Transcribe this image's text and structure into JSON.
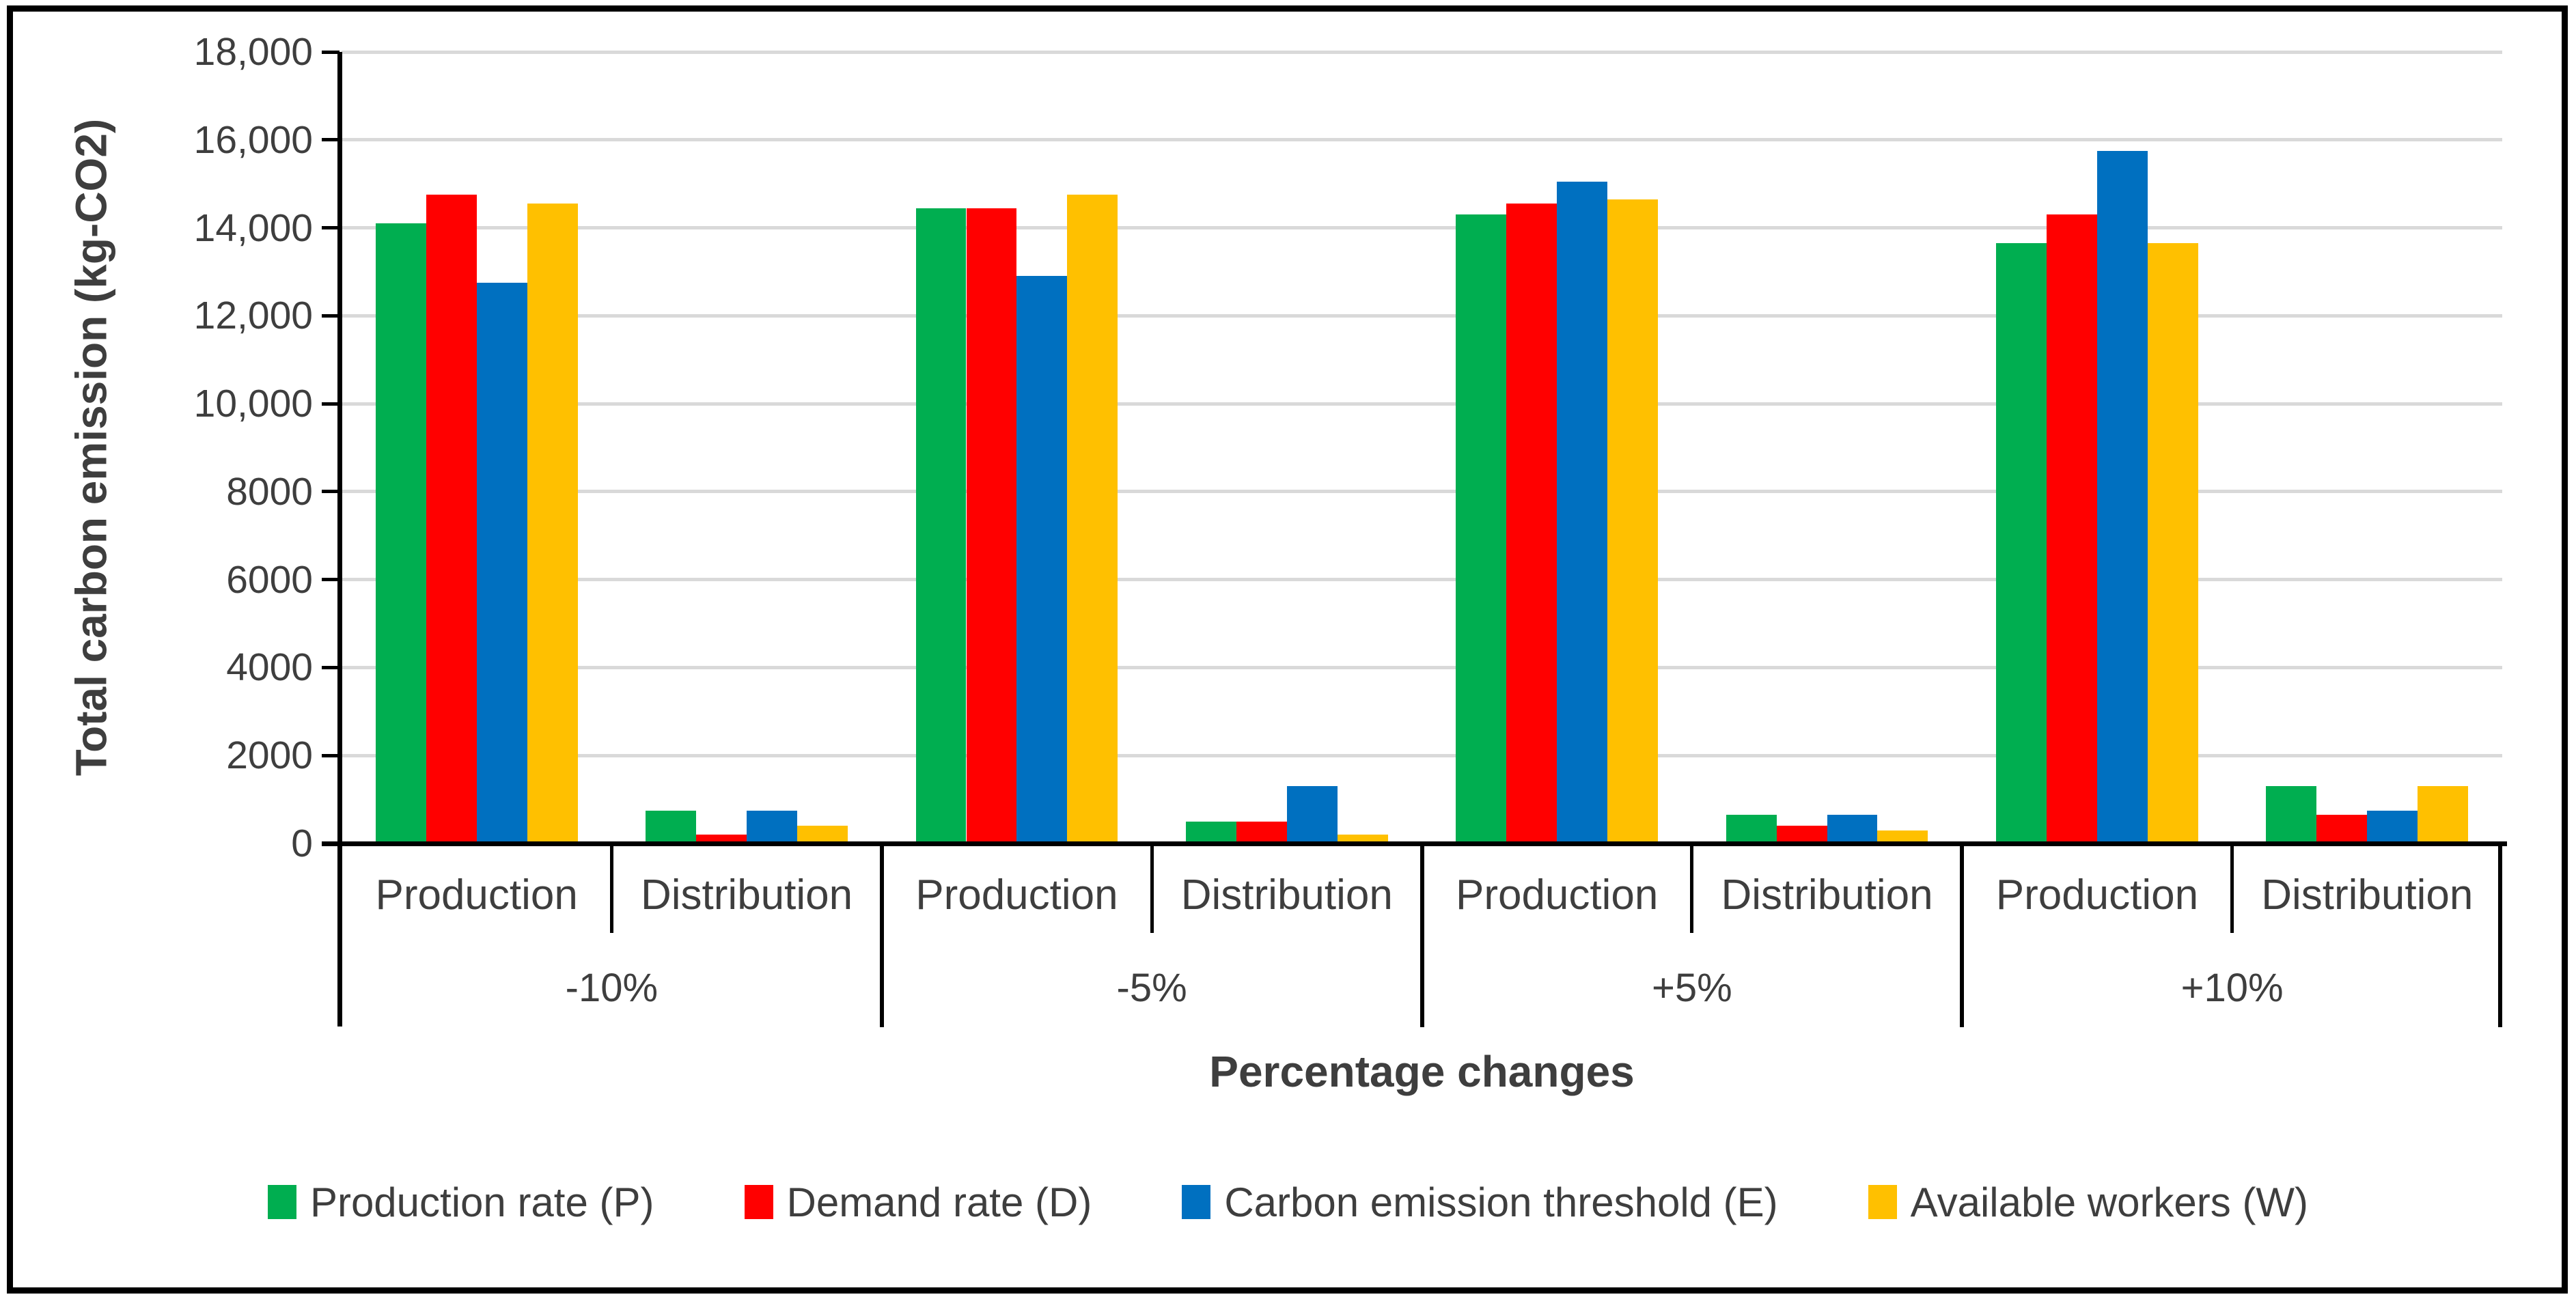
{
  "chart_data": {
    "type": "bar",
    "title": "",
    "ylabel": "Total carbon emission (kg-CO2)",
    "xlabel": "Percentage changes",
    "groups": [
      "-10%",
      "-5%",
      "+5%",
      "+10%"
    ],
    "subcategories": [
      "Production",
      "Distribution"
    ],
    "x_cell_order": [
      "-10% Production",
      "-10% Distribution",
      "-5% Production",
      "-5% Distribution",
      "+5% Production",
      "+5% Distribution",
      "+10% Production",
      "+10% Distribution"
    ],
    "y_ticks": [
      "18,000",
      "16,000",
      "14,000",
      "12,000",
      "10,000",
      "8000",
      "6000",
      "4000",
      "2000",
      "0"
    ],
    "ylim": [
      0,
      18000
    ],
    "grid": true,
    "legend_position": "bottom",
    "colors": {
      "grid": "#d9d9d9",
      "axis": "#000000",
      "text": "#3e3e3e"
    },
    "series": [
      {
        "name": "Production rate (P)",
        "color": "#00AE50",
        "values": [
          14100,
          750,
          14450,
          500,
          14300,
          650,
          13650,
          1300
        ]
      },
      {
        "name": "Demand rate (D)",
        "color": "#FF0000",
        "values": [
          14750,
          200,
          14450,
          500,
          14550,
          400,
          14300,
          650
        ]
      },
      {
        "name": "Carbon emission threshold (E)",
        "color": "#0070C0",
        "values": [
          12750,
          750,
          12900,
          1300,
          15050,
          650,
          15750,
          750
        ]
      },
      {
        "name": "Available workers (W)",
        "color": "#FFC000",
        "values": [
          14550,
          400,
          14750,
          200,
          14650,
          300,
          13650,
          1300
        ]
      }
    ]
  }
}
